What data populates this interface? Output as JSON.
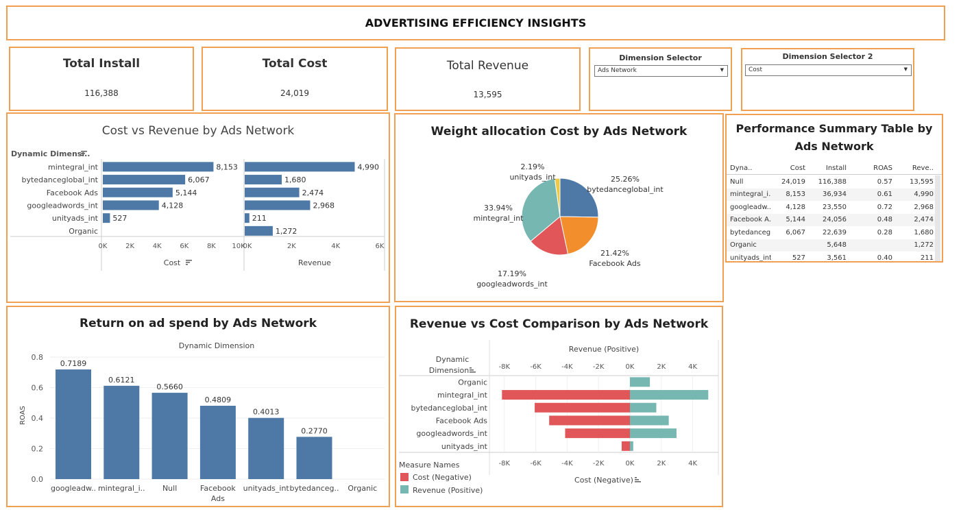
{
  "dashboard": {
    "title": "ADVERTISING EFFICIENCY INSIGHTS"
  },
  "colors": {
    "border": "#f0a050",
    "bar": "#4e79a7",
    "cost_negative": "#e15759",
    "revenue_positive": "#76b7b2",
    "pie_orange": "#f28e2b",
    "pie_yellow": "#edc948"
  },
  "kpis": {
    "install": {
      "label": "Total Install",
      "value": "116,388"
    },
    "cost": {
      "label": "Total Cost",
      "value": "24,019"
    },
    "revenue": {
      "label": "Total Revenue",
      "value": "13,595"
    }
  },
  "selectors": {
    "s1": {
      "label": "Dimension Selector",
      "value": "Ads Network"
    },
    "s2": {
      "label": "Dimension Selector 2",
      "value": "Cost"
    }
  },
  "cost_revenue": {
    "title": "Cost vs Revenue by Ads Network",
    "header": "Dynamic Dimensi..",
    "cost_axis_label": "Cost",
    "revenue_axis_label": "Revenue",
    "cost_ticks": [
      "0K",
      "2K",
      "4K",
      "6K",
      "8K",
      "10K"
    ],
    "revenue_ticks": [
      "0K",
      "2K",
      "4K",
      "6K"
    ]
  },
  "pie": {
    "title": "Weight allocation Cost by Ads Network",
    "labels": [
      {
        "name": "bytedanceglobal_int",
        "pct": "25.26%"
      },
      {
        "name": "Facebook Ads",
        "pct": "21.42%"
      },
      {
        "name": "googleadwords_int",
        "pct": "17.19%"
      },
      {
        "name": "mintegral_int",
        "pct": "33.94%"
      },
      {
        "name": "unityads_int",
        "pct": "2.19%"
      }
    ]
  },
  "summary_table": {
    "title_line1": "Performance Summary Table by",
    "title_line2": "Ads Network",
    "columns": [
      "Dyna..",
      "Cost",
      "Install",
      "ROAS",
      "Reve.."
    ],
    "rows": [
      [
        "Null",
        "24,019",
        "116,388",
        "0.57",
        "13,595"
      ],
      [
        "mintegral_i..",
        "8,153",
        "36,934",
        "0.61",
        "4,990"
      ],
      [
        "googleadw..",
        "4,128",
        "23,550",
        "0.72",
        "2,968"
      ],
      [
        "Facebook A..",
        "5,144",
        "24,056",
        "0.48",
        "2,474"
      ],
      [
        "bytedanceg..",
        "6,067",
        "22,639",
        "0.28",
        "1,680"
      ],
      [
        "Organic",
        "",
        "5,648",
        "",
        "1,272"
      ],
      [
        "unityads_int",
        "527",
        "3,561",
        "0.40",
        "211"
      ]
    ]
  },
  "roas_chart": {
    "title": "Return on ad spend by Ads Network",
    "subtitle": "Dynamic Dimension",
    "ylabel": "ROAS",
    "yticks": [
      "0.0",
      "0.2",
      "0.4",
      "0.6",
      "0.8"
    ],
    "category_labels": [
      [
        "googleadw.."
      ],
      [
        "mintegral_i.."
      ],
      [
        "Null"
      ],
      [
        "Facebook",
        "Ads"
      ],
      [
        "unityads_int"
      ],
      [
        "bytedanceg.."
      ],
      [
        "Organic"
      ]
    ],
    "value_labels": [
      "0.7189",
      "0.6121",
      "0.5660",
      "0.4809",
      "0.4013",
      "0.2770",
      ""
    ]
  },
  "diverging": {
    "title": "Revenue vs Cost Comparison by Ads Network",
    "top_axis_label": "Revenue (Positive)",
    "bottom_axis_label": "Cost (Negative)",
    "row_header": [
      "Dynamic",
      "Dimension"
    ],
    "ticks": [
      "-8K",
      "-6K",
      "-4K",
      "-2K",
      "0K",
      "2K",
      "4K"
    ],
    "legend_title": "Measure Names",
    "legend": [
      "Cost (Negative)",
      "Revenue (Positive)"
    ]
  },
  "chart_data": [
    {
      "type": "bar",
      "title": "Cost vs Revenue by Ads Network",
      "categories": [
        "mintegral_int",
        "bytedanceglobal_int",
        "Facebook Ads",
        "googleadwords_int",
        "unityads_int",
        "Organic"
      ],
      "series": [
        {
          "name": "Cost",
          "values": [
            8153,
            6067,
            5144,
            4128,
            527,
            null
          ]
        },
        {
          "name": "Revenue",
          "values": [
            4990,
            1680,
            2474,
            2968,
            211,
            1272
          ]
        }
      ],
      "xlim_cost": [
        0,
        10000
      ],
      "xlim_revenue": [
        0,
        6000
      ]
    },
    {
      "type": "pie",
      "title": "Weight allocation Cost by Ads Network",
      "categories": [
        "bytedanceglobal_int",
        "Facebook Ads",
        "googleadwords_int",
        "mintegral_int",
        "unityads_int"
      ],
      "values": [
        25.26,
        21.42,
        17.19,
        33.94,
        2.19
      ]
    },
    {
      "type": "bar",
      "title": "Return on ad spend by Ads Network",
      "categories": [
        "googleadwords_int",
        "mintegral_int",
        "Null",
        "Facebook Ads",
        "unityads_int",
        "bytedanceglobal_int",
        "Organic"
      ],
      "values": [
        0.7189,
        0.6121,
        0.566,
        0.4809,
        0.4013,
        0.277,
        null
      ],
      "ylabel": "ROAS",
      "ylim": [
        0,
        0.8
      ]
    },
    {
      "type": "bar",
      "title": "Revenue vs Cost Comparison by Ads Network",
      "categories": [
        "Organic",
        "mintegral_int",
        "bytedanceglobal_int",
        "Facebook Ads",
        "googleadwords_int",
        "unityads_int"
      ],
      "series": [
        {
          "name": "Cost (Negative)",
          "values": [
            0,
            -8153,
            -6067,
            -5144,
            -4128,
            -527
          ]
        },
        {
          "name": "Revenue (Positive)",
          "values": [
            1272,
            4990,
            1680,
            2474,
            2968,
            211
          ]
        }
      ],
      "xlim": [
        -8153,
        5000
      ]
    }
  ]
}
